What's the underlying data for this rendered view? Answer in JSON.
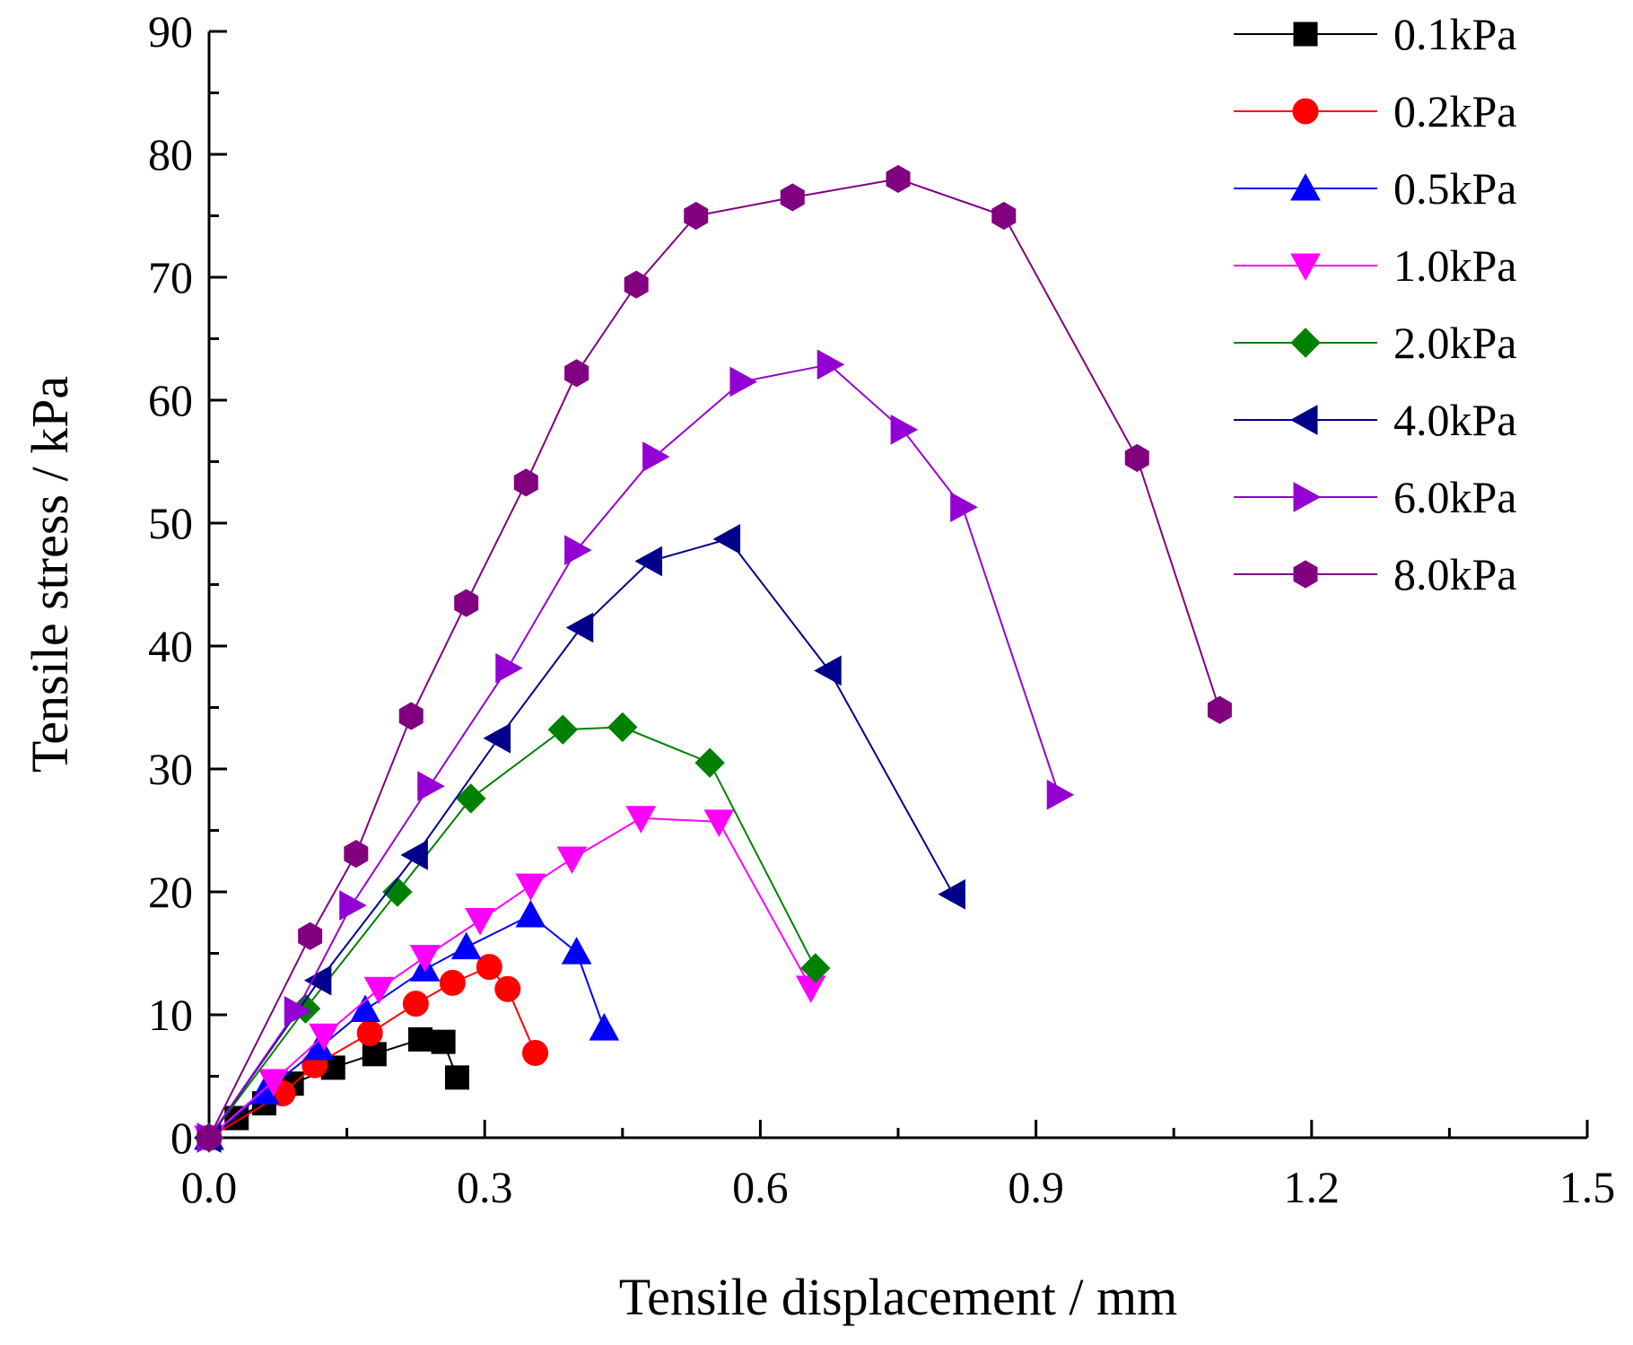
{
  "chart_data": {
    "type": "line",
    "title": "",
    "xlabel": "Tensile displacement / mm",
    "ylabel": "Tensile stress / kPa",
    "xlim": [
      0,
      1.5
    ],
    "ylim": [
      0,
      90
    ],
    "x_ticks": [
      "0.0",
      "0.3",
      "0.6",
      "0.9",
      "1.2",
      "1.5"
    ],
    "y_ticks": [
      "0",
      "10",
      "20",
      "30",
      "40",
      "50",
      "60",
      "70",
      "80",
      "90"
    ],
    "legend_position": "top-right",
    "series": [
      {
        "name": "0.1kPa",
        "color": "#000000",
        "marker": "square",
        "points": [
          [
            0,
            0
          ],
          [
            0.03,
            1.6
          ],
          [
            0.06,
            2.8
          ],
          [
            0.09,
            4.4
          ],
          [
            0.135,
            5.7
          ],
          [
            0.18,
            6.8
          ],
          [
            0.23,
            8.0
          ],
          [
            0.255,
            7.8
          ],
          [
            0.27,
            4.9
          ]
        ]
      },
      {
        "name": "0.2kPa",
        "color": "#ff0000",
        "marker": "circle",
        "points": [
          [
            0,
            0
          ],
          [
            0.08,
            3.6
          ],
          [
            0.115,
            5.9
          ],
          [
            0.175,
            8.5
          ],
          [
            0.225,
            10.9
          ],
          [
            0.265,
            12.6
          ],
          [
            0.305,
            13.9
          ],
          [
            0.325,
            12.1
          ],
          [
            0.355,
            6.9
          ]
        ]
      },
      {
        "name": "0.5kPa",
        "color": "#0000ff",
        "marker": "triangle-up",
        "points": [
          [
            0,
            0
          ],
          [
            0.06,
            3.7
          ],
          [
            0.12,
            7.3
          ],
          [
            0.17,
            10.4
          ],
          [
            0.235,
            13.7
          ],
          [
            0.28,
            15.5
          ],
          [
            0.35,
            18.1
          ],
          [
            0.4,
            15.1
          ],
          [
            0.43,
            8.9
          ]
        ]
      },
      {
        "name": "1.0kPa",
        "color": "#ff00ff",
        "marker": "triangle-down",
        "points": [
          [
            0,
            0
          ],
          [
            0.07,
            4.6
          ],
          [
            0.125,
            8.3
          ],
          [
            0.185,
            12.1
          ],
          [
            0.235,
            14.7
          ],
          [
            0.295,
            17.7
          ],
          [
            0.35,
            20.5
          ],
          [
            0.395,
            22.7
          ],
          [
            0.47,
            26.0
          ],
          [
            0.555,
            25.7
          ],
          [
            0.655,
            12.2
          ]
        ]
      },
      {
        "name": "2.0kPa",
        "color": "#008000",
        "marker": "diamond",
        "points": [
          [
            0,
            0
          ],
          [
            0.105,
            10.5
          ],
          [
            0.205,
            20.0
          ],
          [
            0.285,
            27.6
          ],
          [
            0.385,
            33.2
          ],
          [
            0.45,
            33.4
          ],
          [
            0.545,
            30.5
          ],
          [
            0.66,
            13.8
          ]
        ]
      },
      {
        "name": "4.0kPa",
        "color": "#00008b",
        "marker": "triangle-left",
        "points": [
          [
            0,
            0
          ],
          [
            0.12,
            12.8
          ],
          [
            0.225,
            23.0
          ],
          [
            0.315,
            32.5
          ],
          [
            0.405,
            41.5
          ],
          [
            0.48,
            46.9
          ],
          [
            0.565,
            48.7
          ],
          [
            0.675,
            38.0
          ],
          [
            0.81,
            19.8
          ]
        ]
      },
      {
        "name": "6.0kPa",
        "color": "#9400d3",
        "marker": "triangle-right",
        "points": [
          [
            0,
            0
          ],
          [
            0.095,
            10.3
          ],
          [
            0.155,
            18.9
          ],
          [
            0.24,
            28.6
          ],
          [
            0.325,
            38.2
          ],
          [
            0.4,
            47.8
          ],
          [
            0.485,
            55.4
          ],
          [
            0.58,
            61.5
          ],
          [
            0.675,
            62.9
          ],
          [
            0.755,
            57.6
          ],
          [
            0.82,
            51.3
          ],
          [
            0.925,
            27.9
          ]
        ]
      },
      {
        "name": "8.0kPa",
        "color": "#800080",
        "marker": "hexagon",
        "points": [
          [
            0,
            0
          ],
          [
            0.11,
            16.4
          ],
          [
            0.16,
            23.1
          ],
          [
            0.22,
            34.3
          ],
          [
            0.28,
            43.5
          ],
          [
            0.345,
            53.3
          ],
          [
            0.4,
            62.2
          ],
          [
            0.465,
            69.4
          ],
          [
            0.53,
            75.0
          ],
          [
            0.635,
            76.5
          ],
          [
            0.75,
            78.0
          ],
          [
            0.865,
            75.0
          ],
          [
            1.01,
            55.3
          ],
          [
            1.1,
            34.8
          ]
        ]
      }
    ]
  }
}
